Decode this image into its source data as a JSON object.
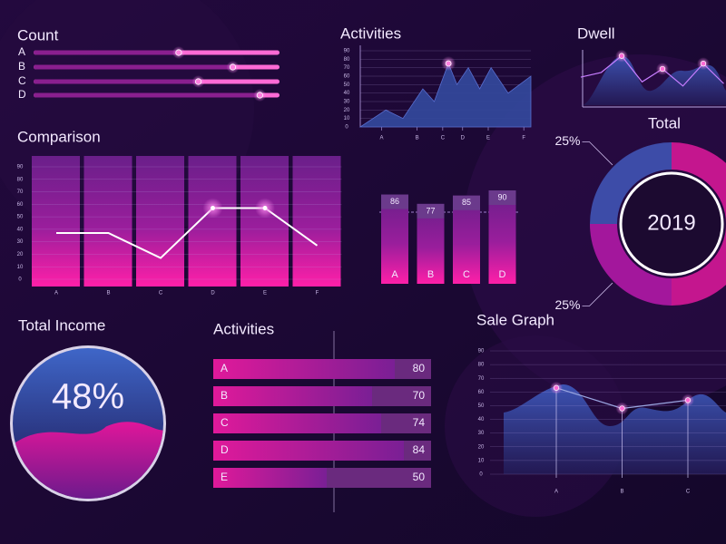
{
  "chart_data": [
    {
      "type": "slider",
      "title": "Count",
      "categories": [
        "A",
        "B",
        "C",
        "D"
      ],
      "values": [
        59,
        81,
        67,
        92
      ],
      "xlim": [
        0,
        100
      ],
      "color": "#ff6ad5"
    },
    {
      "type": "area",
      "title": "Activities",
      "x": [
        0,
        0.9,
        1.5,
        2.2,
        2.6,
        3.1,
        3.4,
        3.8,
        4.2,
        4.6,
        5.2,
        6
      ],
      "values": [
        0,
        20,
        10,
        45,
        30,
        75,
        50,
        70,
        45,
        70,
        40,
        60
      ],
      "xlim": [
        0,
        6
      ],
      "xticks": [
        {
          "value": 0.75,
          "label": "A"
        },
        {
          "value": 2,
          "label": "B"
        },
        {
          "value": 2.9,
          "label": "C"
        },
        {
          "value": 3.6,
          "label": "D"
        },
        {
          "value": 4.5,
          "label": "E"
        },
        {
          "value": 5.75,
          "label": "F"
        }
      ],
      "ylim": [
        0,
        90
      ],
      "yticks": [
        0,
        10,
        20,
        30,
        40,
        50,
        60,
        70,
        80,
        90
      ],
      "color": "#33479a"
    },
    {
      "type": "line",
      "title": "Dwell",
      "values": [
        46,
        54,
        82,
        38,
        60,
        31,
        69,
        35
      ],
      "ylim": [
        0,
        100
      ],
      "color": "#c77dff"
    },
    {
      "type": "donut",
      "title": "Total",
      "center_label": "2019",
      "values": [
        50,
        25,
        25
      ],
      "value_labels": [
        null,
        "25%",
        "25%"
      ],
      "colors": [
        "#c4168e",
        "#a3179c",
        "#3d4ca8"
      ]
    },
    {
      "type": "line",
      "title": "Comparison",
      "categories": [
        "A",
        "B",
        "C",
        "D",
        "E",
        "F"
      ],
      "values": [
        37,
        37,
        17,
        57,
        57,
        27
      ],
      "ylim": [
        0,
        90
      ],
      "yticks": [
        0,
        10,
        20,
        30,
        40,
        50,
        60,
        70,
        80,
        90
      ],
      "color": "#ffffff"
    },
    {
      "type": "bar",
      "categories": [
        "A",
        "B",
        "C",
        "D"
      ],
      "values": [
        86,
        77,
        85,
        90
      ],
      "ylim": [
        0,
        90
      ],
      "color": "#d81b9a"
    },
    {
      "type": "gauge",
      "title": "Total Income",
      "value": 48,
      "value_label": "48%",
      "color": "#d0168f"
    },
    {
      "type": "hbar",
      "title": "Activities",
      "categories": [
        "A",
        "B",
        "C",
        "D",
        "E"
      ],
      "values": [
        80,
        70,
        74,
        84,
        50
      ],
      "xlim": [
        0,
        100
      ],
      "color": "#d81b9a"
    },
    {
      "type": "line",
      "title": "Sale Graph",
      "categories": [
        "A",
        "B",
        "C"
      ],
      "values": [
        63,
        48,
        54
      ],
      "ylim": [
        0,
        90
      ],
      "yticks": [
        0,
        10,
        20,
        30,
        40,
        50,
        60,
        70,
        80,
        90
      ],
      "color": "#9aa6e0"
    }
  ]
}
